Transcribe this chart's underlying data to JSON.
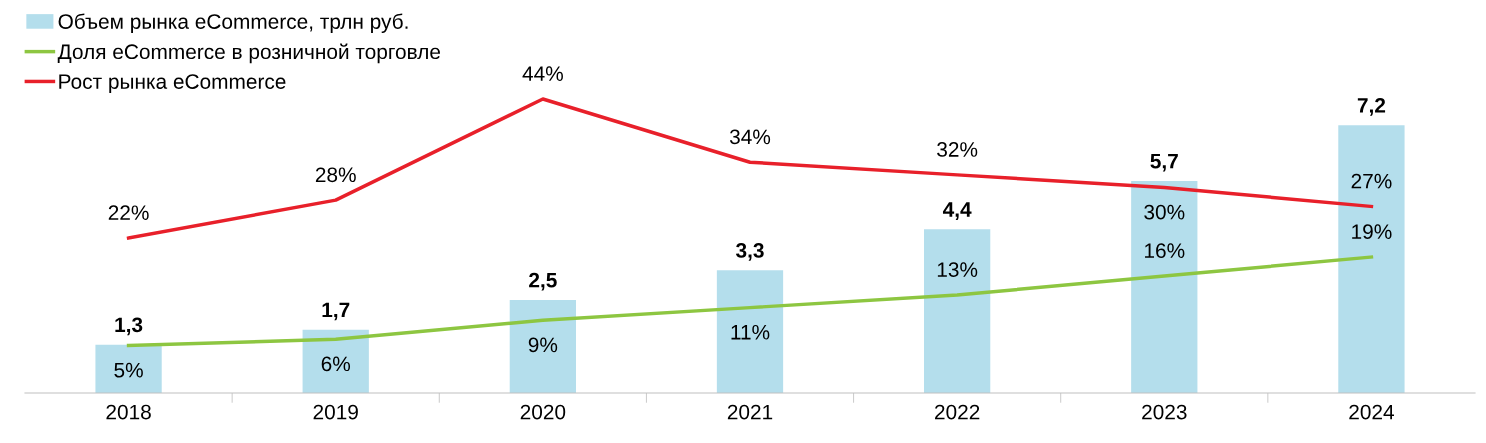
{
  "chart_data": {
    "type": "bar",
    "categories": [
      "2018",
      "2019",
      "2020",
      "2021",
      "2022",
      "2023",
      "2024"
    ],
    "series": [
      {
        "name": "Объем рынка eCommerce, трлн руб.",
        "color": "#b4deec",
        "values": [
          1.3,
          1.7,
          2.5,
          3.3,
          4.4,
          5.7,
          7.2
        ],
        "value_labels": [
          "1,3",
          "1,7",
          "2,5",
          "3,3",
          "4,4",
          "5,7",
          "7,2"
        ]
      },
      {
        "name": "Доля eCommerce в розничной торговле",
        "type": "line",
        "axis": "y2",
        "color": "#8dc641",
        "values": [
          5,
          6,
          9,
          11,
          13,
          16,
          19
        ],
        "value_labels": [
          "5%",
          "6%",
          "9%",
          "11%",
          "13%",
          "16%",
          "19%"
        ]
      },
      {
        "name": "Рост рынка eCommerce",
        "type": "line",
        "axis": "y2",
        "color": "#e8202a",
        "values": [
          22,
          28,
          44,
          34,
          32,
          30,
          27
        ],
        "value_labels": [
          "22%",
          "28%",
          "44%",
          "34%",
          "32%",
          "30%",
          "27%"
        ]
      }
    ],
    "tick_labels": "x",
    "legend": "top left",
    "marker": "none",
    "line_style": "solid"
  }
}
